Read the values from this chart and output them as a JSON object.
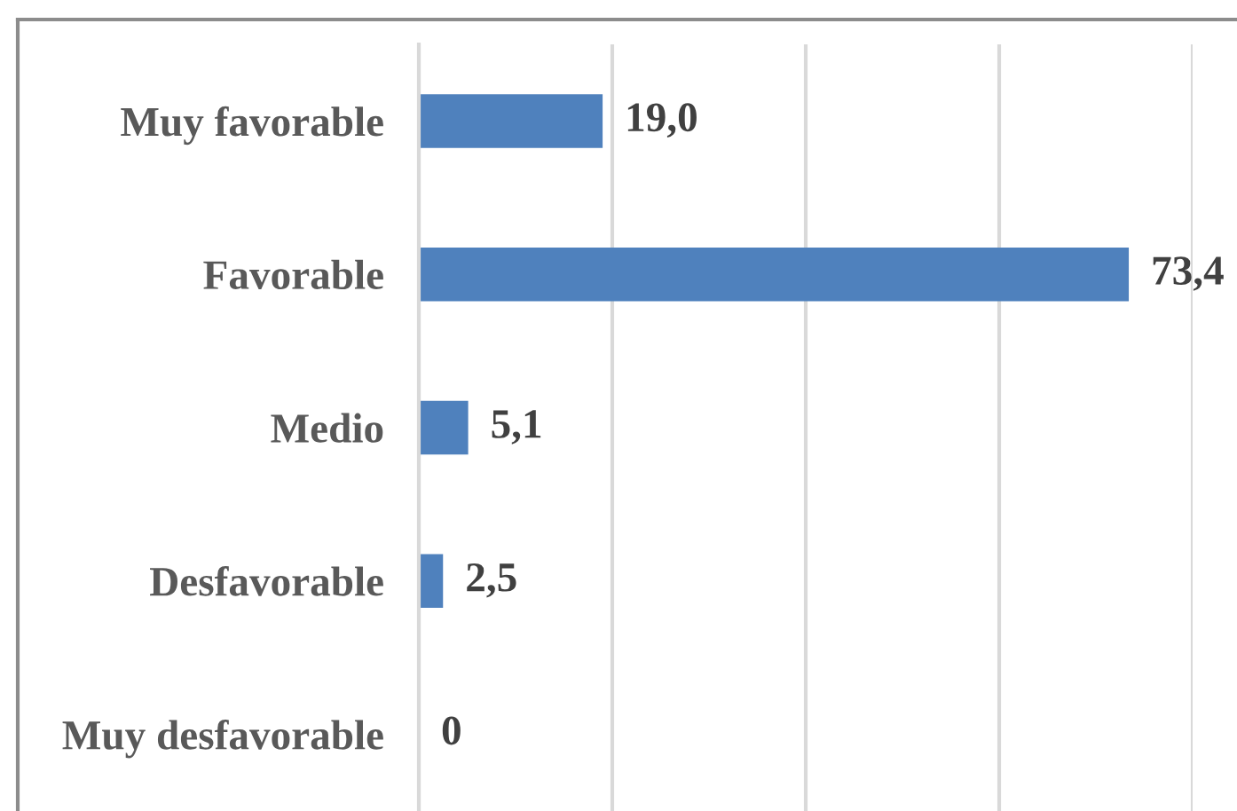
{
  "chart_data": {
    "type": "bar",
    "orientation": "horizontal",
    "categories": [
      "Muy favorable",
      "Favorable",
      "Medio",
      "Desfavorable",
      "Muy desfavorable"
    ],
    "values": [
      19.0,
      73.4,
      5.1,
      2.5,
      0
    ],
    "color": "#4f81bd",
    "value_labels": [
      "19,0",
      "73,4",
      "5,1",
      "2,5",
      "0"
    ],
    "xlim": [
      0,
      80
    ],
    "xticks": [
      {
        "value": 0,
        "label": null
      },
      {
        "value": 20,
        "label": null
      },
      {
        "value": 40,
        "label": null
      },
      {
        "value": 60,
        "label": null
      },
      {
        "value": 80,
        "label": null
      }
    ],
    "grid": "x",
    "tick_labels": "y"
  }
}
